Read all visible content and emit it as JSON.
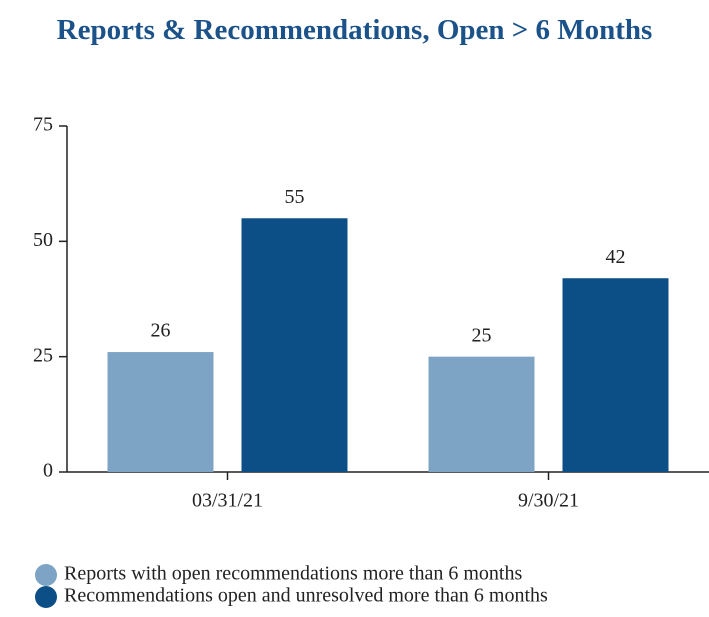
{
  "chart_data": {
    "type": "bar",
    "title": "Reports & Recommendations, Open > 6 Months",
    "categories": [
      "03/31/21",
      "9/30/21"
    ],
    "series": [
      {
        "name": "Reports with open recommendations more than 6 months",
        "color": "#7da4c4",
        "values": [
          26,
          25
        ]
      },
      {
        "name": "Recommendations open and unresolved more than 6 months",
        "color": "#0b4f86",
        "values": [
          55,
          42
        ]
      }
    ],
    "ylim": [
      0,
      75
    ],
    "yticks": [
      0,
      25,
      50,
      75
    ],
    "grid": false,
    "legend": "bottom"
  }
}
